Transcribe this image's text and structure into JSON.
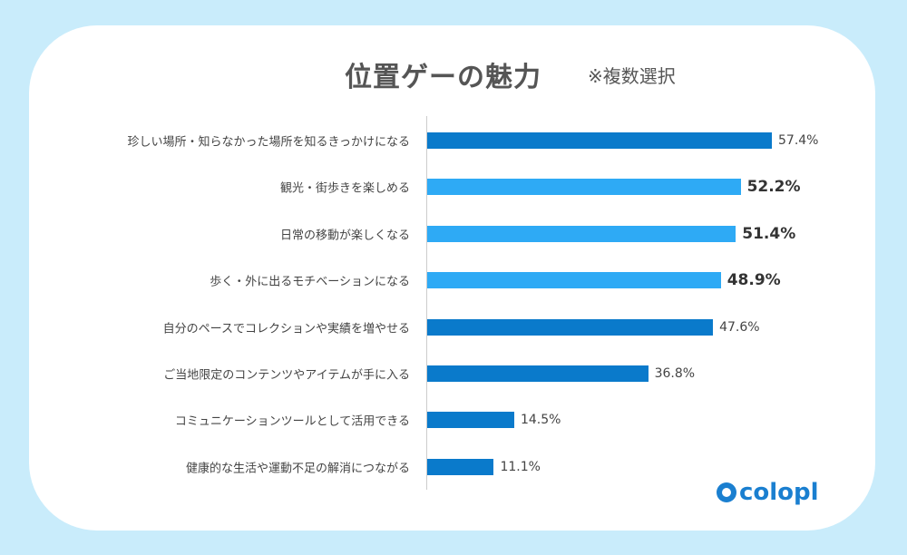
{
  "chart_data": {
    "type": "bar",
    "orientation": "horizontal",
    "title": "位置ゲーの魅力",
    "subtitle": "※複数選択",
    "categories": [
      "珍しい場所・知らなかった場所を知るきっかけになる",
      "観光・街歩きを楽しめる",
      "日常の移動が楽しくなる",
      "歩く・外に出るモチベーションになる",
      "自分のペースでコレクションや実績を増やせる",
      "ご当地限定のコンテンツやアイテムが手に入る",
      "コミュニケーションツールとして活用できる",
      "健康的な生活や運動不足の解消につながる"
    ],
    "values": [
      57.4,
      52.2,
      51.4,
      48.9,
      47.6,
      36.8,
      14.5,
      11.1
    ],
    "value_labels": [
      "57.4%",
      "52.2%",
      "51.4%",
      "48.9%",
      "47.6%",
      "36.8%",
      "14.5%",
      "11.1%"
    ],
    "highlighted": [
      false,
      true,
      true,
      true,
      false,
      false,
      false,
      false
    ],
    "unit": "%",
    "xlim": [
      0,
      60
    ],
    "colors": {
      "normal": "#0a7acb",
      "highlight": "#2eaaf5"
    }
  },
  "brand": {
    "logo_text": "colopl"
  }
}
